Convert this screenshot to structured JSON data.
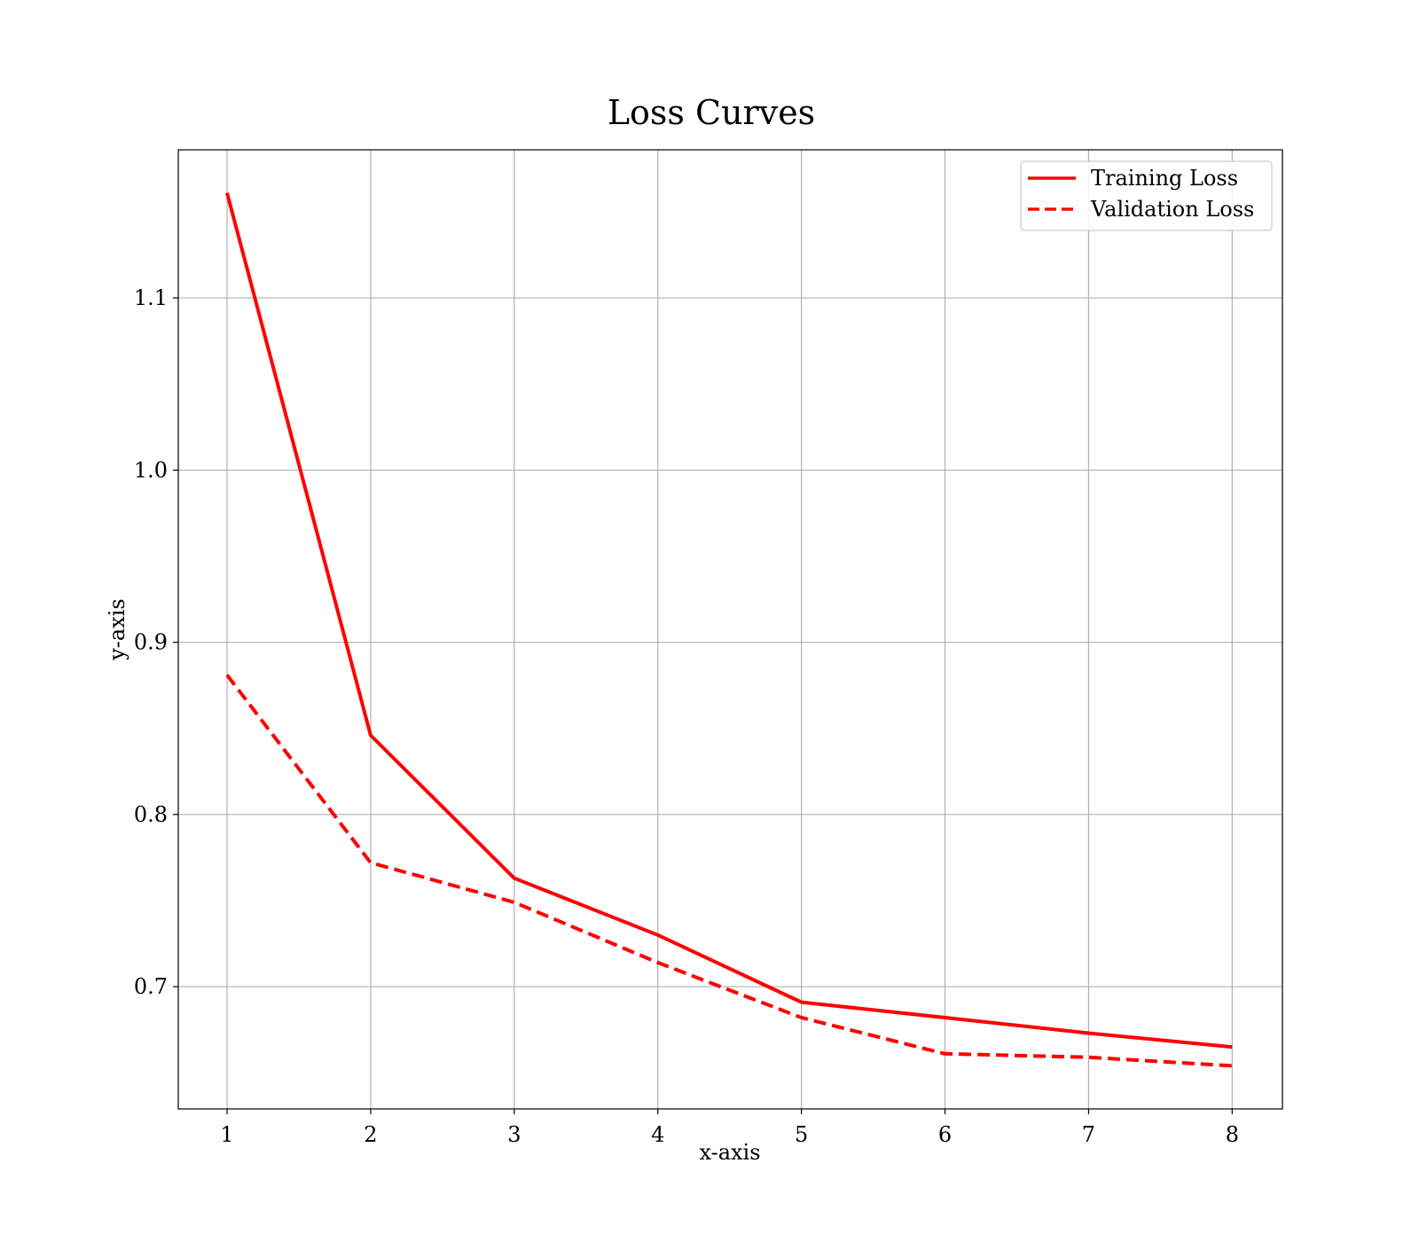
{
  "chart_data": {
    "type": "line",
    "title": "Loss Curves",
    "xlabel": "x-axis",
    "ylabel": "y-axis",
    "x": [
      1,
      2,
      3,
      4,
      5,
      6,
      7,
      8
    ],
    "xticks": [
      "1",
      "2",
      "3",
      "4",
      "5",
      "6",
      "7",
      "8"
    ],
    "yticks": [
      "0.7",
      "0.8",
      "0.9",
      "1.0",
      "1.1"
    ],
    "ytick_values": [
      0.7,
      0.8,
      0.9,
      1.0,
      1.1
    ],
    "xlim": [
      0.66,
      8.35
    ],
    "ylim": [
      0.629,
      1.186
    ],
    "grid": true,
    "legend_position": "top-right",
    "series": [
      {
        "name": "Training Loss",
        "style": "solid",
        "color": "#ff0000",
        "values": [
          1.161,
          0.846,
          0.763,
          0.73,
          0.691,
          0.682,
          0.673,
          0.665
        ]
      },
      {
        "name": "Validation Loss",
        "style": "dashed",
        "color": "#ff0000",
        "values": [
          0.881,
          0.772,
          0.749,
          0.714,
          0.682,
          0.661,
          0.659,
          0.654
        ]
      }
    ]
  }
}
